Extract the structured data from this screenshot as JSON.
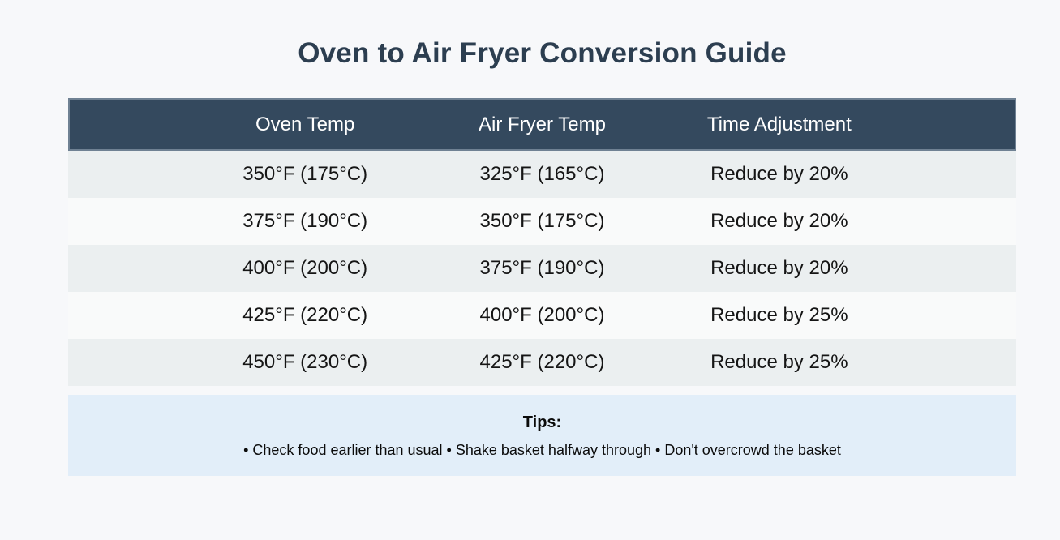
{
  "page": {
    "title": "Oven to Air Fryer Conversion Guide"
  },
  "table": {
    "columns": [
      "Oven Temp",
      "Air Fryer Temp",
      "Time Adjustment"
    ],
    "rows": [
      [
        "350°F (175°C)",
        "325°F (165°C)",
        "Reduce by 20%"
      ],
      [
        "375°F (190°C)",
        "350°F (175°C)",
        "Reduce by 20%"
      ],
      [
        "400°F (200°C)",
        "375°F (190°C)",
        "Reduce by 20%"
      ],
      [
        "425°F (220°C)",
        "400°F (200°C)",
        "Reduce by 25%"
      ],
      [
        "450°F (230°C)",
        "425°F (220°C)",
        "Reduce by 25%"
      ]
    ]
  },
  "tips": {
    "heading": "Tips:",
    "items": [
      "Check food earlier than usual",
      "Shake basket halfway through",
      "Don't overcrowd the basket"
    ],
    "text": "• Check food earlier than usual • Shake basket halfway through • Don't overcrowd the basket"
  },
  "colors": {
    "page_bg": "#F7F8FA",
    "title_text": "#2C3E50",
    "header_bg": "#34495E",
    "header_text": "#FFFFFF",
    "row_odd_bg": "#EBEFF0",
    "row_even_bg": "#F9FAFA",
    "cell_text": "#151515",
    "tips_bg": "#E2EEF9"
  }
}
